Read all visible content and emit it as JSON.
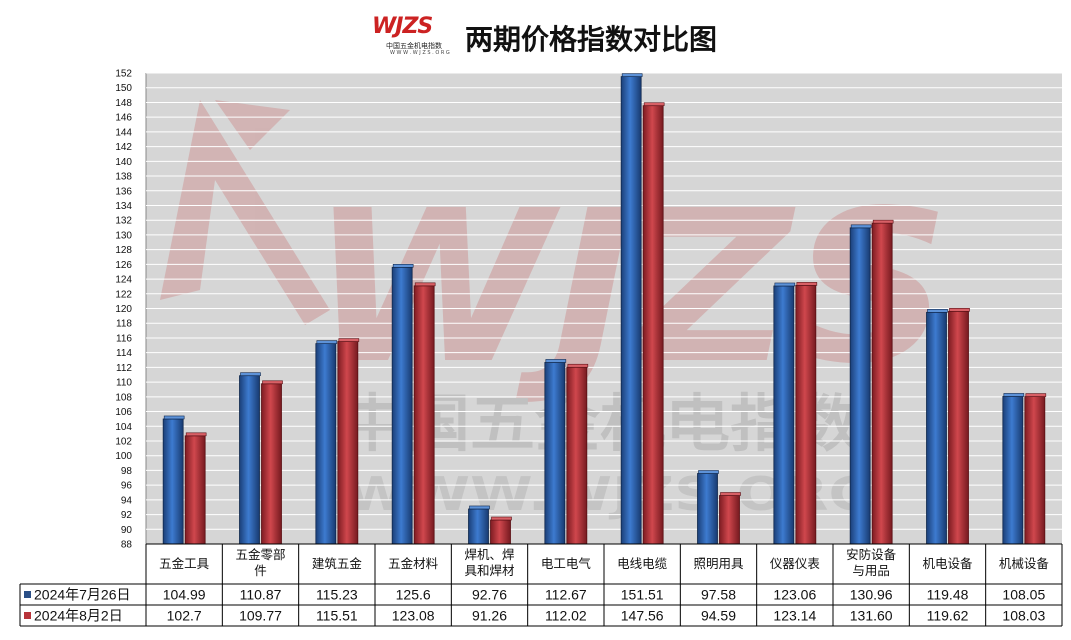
{
  "header": {
    "logo_mark": "WJZS",
    "logo_cn": "中国五金机电指数",
    "logo_url": "W W W . W J Z S . O R G",
    "title": "两期价格指数对比图"
  },
  "watermark": {
    "mark": "WJZS",
    "cn": "中国五金机电指数",
    "url": "WWW.WJZS.ORG"
  },
  "colors": {
    "series1": "#2a5fa8",
    "series2": "#b8343a",
    "plot_bg": "#d6d6d6",
    "grid": "#ffffff"
  },
  "chart_data": {
    "type": "bar",
    "title": "两期价格指数对比图",
    "xlabel": "",
    "ylabel": "",
    "ylim": [
      88,
      152
    ],
    "ytick_step": 2,
    "grid": true,
    "legend_placement": "data-table-left",
    "categories": [
      "五金工具",
      "五金零部件",
      "建筑五金",
      "五金材料",
      "焊机、焊具和焊材",
      "电工电气",
      "电线电缆",
      "照明用具",
      "仪器仪表",
      "安防设备与用品",
      "机电设备",
      "机械设备"
    ],
    "category_lines": [
      [
        "五金工具"
      ],
      [
        "五金零部",
        "件"
      ],
      [
        "建筑五金"
      ],
      [
        "五金材料"
      ],
      [
        "焊机、焊",
        "具和焊材"
      ],
      [
        "电工电气"
      ],
      [
        "电线电缆"
      ],
      [
        "照明用具"
      ],
      [
        "仪器仪表"
      ],
      [
        "安防设备",
        "与用品"
      ],
      [
        "机电设备"
      ],
      [
        "机械设备"
      ]
    ],
    "series": [
      {
        "name": "2024年7月26日",
        "values": [
          104.99,
          110.87,
          115.23,
          125.6,
          92.76,
          112.67,
          151.51,
          97.58,
          123.06,
          130.96,
          119.48,
          108.05
        ],
        "labels": [
          "104.99",
          "110.87",
          "115.23",
          "125.6",
          "92.76",
          "112.67",
          "151.51",
          "97.58",
          "123.06",
          "130.96",
          "119.48",
          "108.05"
        ]
      },
      {
        "name": "2024年8月2日",
        "values": [
          102.7,
          109.77,
          115.51,
          123.08,
          91.26,
          112.02,
          147.56,
          94.59,
          123.14,
          131.6,
          119.62,
          108.03
        ],
        "labels": [
          "102.7",
          "109.77",
          "115.51",
          "123.08",
          "91.26",
          "112.02",
          "147.56",
          "94.59",
          "123.14",
          "131.60",
          "119.62",
          "108.03"
        ]
      }
    ]
  }
}
